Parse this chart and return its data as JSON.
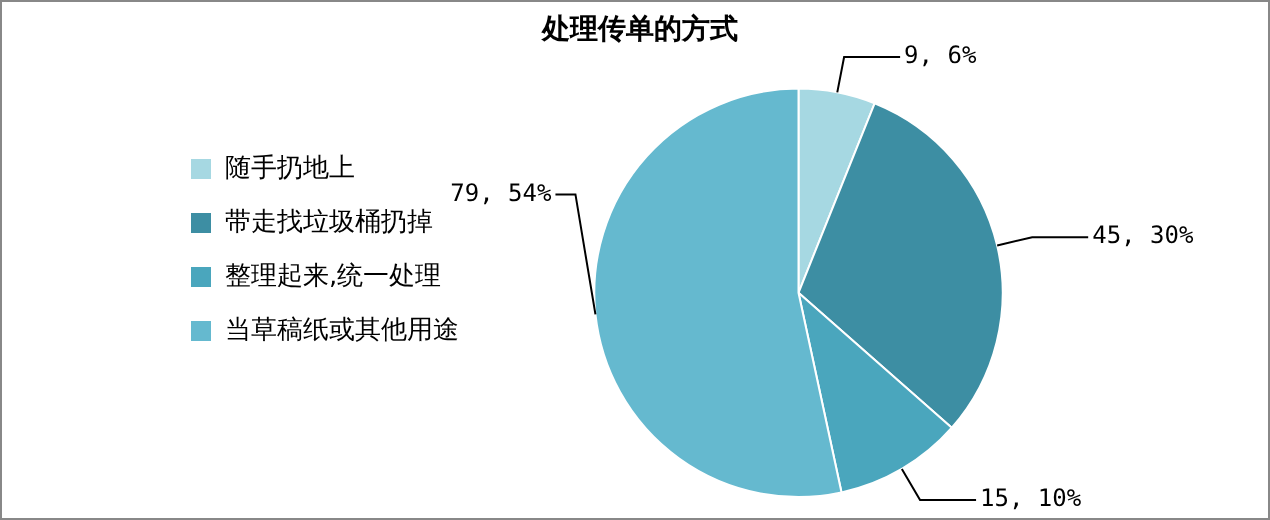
{
  "chart_data": {
    "type": "pie",
    "title": "处理传单的方式",
    "categories": [
      "随手扔地上",
      "带走找垃圾桶扔掉",
      "整理起来,统一处理",
      "当草稿纸或其他用途"
    ],
    "values": [
      9,
      45,
      15,
      79
    ],
    "colors": [
      "#a6d8e2",
      "#3d8ea3",
      "#4aa6bd",
      "#65b9cf"
    ],
    "value_labels": [
      "9, 6%",
      "45, 30%",
      "15, 10%",
      "79, 54%"
    ],
    "legend": "left"
  }
}
